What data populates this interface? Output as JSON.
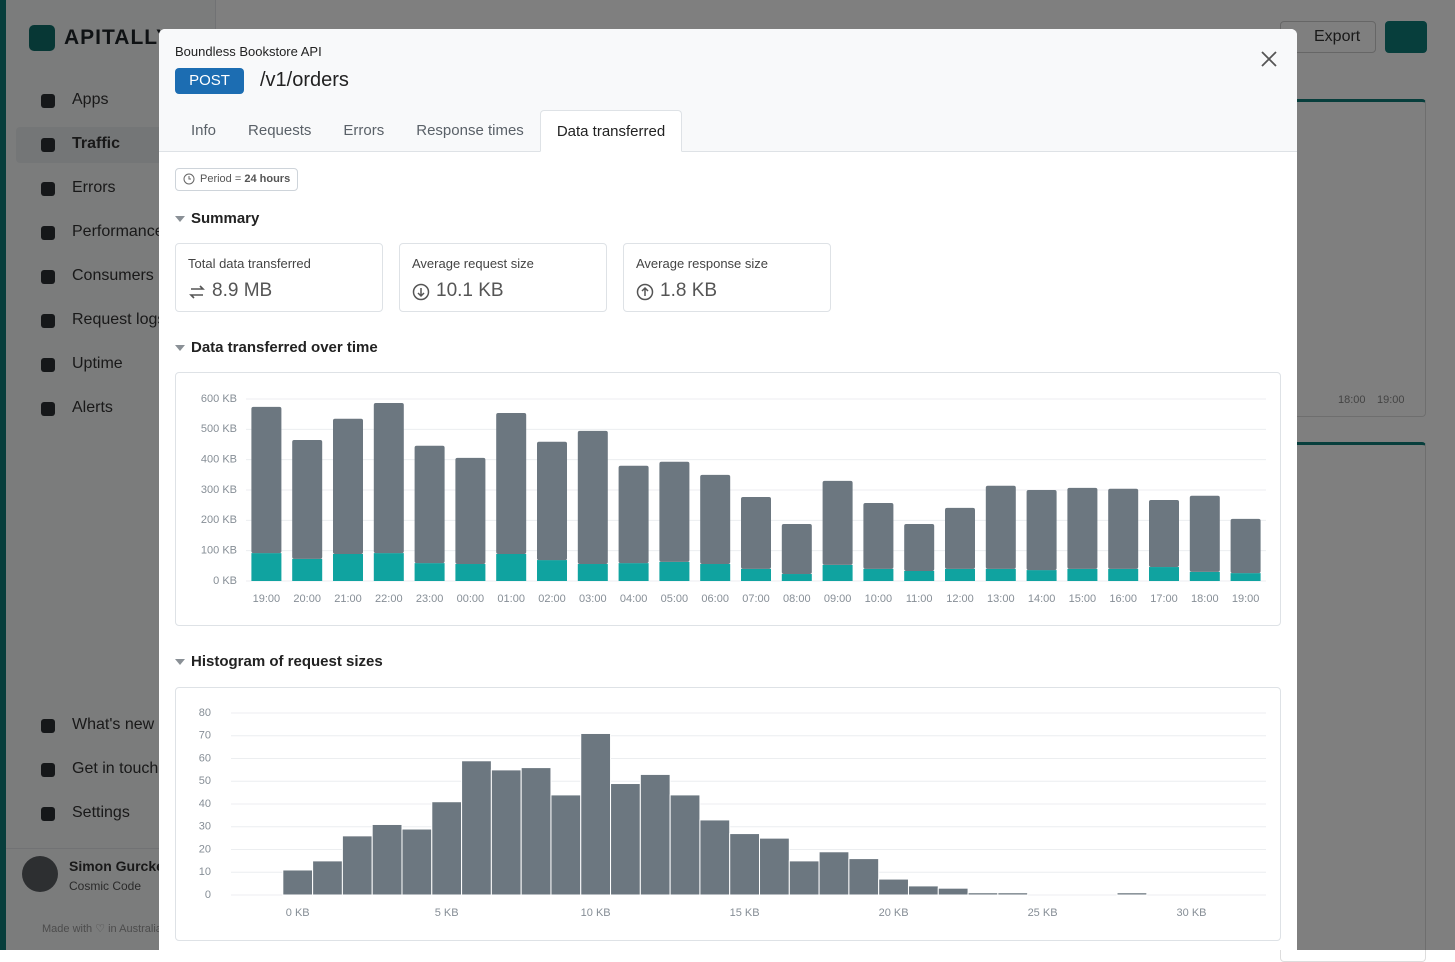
{
  "sidebar": {
    "brand": "APITALLY",
    "nav": [
      "Apps",
      "Traffic",
      "Errors",
      "Performance",
      "Consumers",
      "Request logs",
      "Uptime",
      "Alerts"
    ],
    "active_nav": 1,
    "bottom_nav": [
      "What's new",
      "Get in touch",
      "Settings"
    ],
    "user_name": "Simon Gurcke",
    "user_org": "Cosmic Code",
    "footer": "Made with ♡ in Australia"
  },
  "background": {
    "export": "Export",
    "x_labels": [
      "18:00",
      "19:00"
    ]
  },
  "modal": {
    "app": "Boundless Bookstore API",
    "method": "POST",
    "path": "/v1/orders",
    "tabs": [
      "Info",
      "Requests",
      "Errors",
      "Response times",
      "Data transferred"
    ],
    "active_tab": 4,
    "period_label": "Period =",
    "period_value": "24 hours",
    "summary_title": "Summary",
    "cards": [
      {
        "label": "Total data transferred",
        "value": "8.9 MB"
      },
      {
        "label": "Average request size",
        "value": "10.1 KB"
      },
      {
        "label": "Average response size",
        "value": "1.8 KB"
      }
    ]
  },
  "chart_data": [
    {
      "type": "bar",
      "stacked": true,
      "title": "Data transferred over time",
      "categories": [
        "19:00",
        "20:00",
        "21:00",
        "22:00",
        "23:00",
        "00:00",
        "01:00",
        "02:00",
        "03:00",
        "04:00",
        "05:00",
        "06:00",
        "07:00",
        "08:00",
        "09:00",
        "10:00",
        "11:00",
        "12:00",
        "13:00",
        "14:00",
        "15:00",
        "16:00",
        "17:00",
        "18:00",
        "19:00"
      ],
      "series": [
        {
          "color": "#10a3a0",
          "values": [
            92,
            73,
            89,
            92,
            59,
            56,
            89,
            69,
            56,
            59,
            63,
            56,
            40,
            23,
            53,
            40,
            33,
            40,
            40,
            36,
            40,
            40,
            46,
            30,
            26
          ]
        },
        {
          "color": "#6c7780",
          "values": [
            482,
            392,
            446,
            495,
            387,
            350,
            465,
            390,
            439,
            321,
            330,
            294,
            237,
            165,
            277,
            217,
            155,
            201,
            274,
            264,
            267,
            264,
            221,
            251,
            179
          ]
        }
      ],
      "ylim": [
        0,
        600
      ],
      "yticks": [
        {
          "value": 0,
          "label": "0 KB"
        },
        {
          "value": 100,
          "label": "100 KB"
        },
        {
          "value": 200,
          "label": "200 KB"
        },
        {
          "value": 300,
          "label": "300 KB"
        },
        {
          "value": 400,
          "label": "400 KB"
        },
        {
          "value": 500,
          "label": "500 KB"
        },
        {
          "value": 600,
          "label": "600 KB"
        }
      ],
      "grid": true
    },
    {
      "type": "histogram",
      "title": "Histogram of request sizes",
      "color": "#6c7780",
      "bins": [
        -0.5,
        0.5,
        1.5,
        2.5,
        3.5,
        4.5,
        5.5,
        6.5,
        7.5,
        8.5,
        9.5,
        10.5,
        11.5,
        12.5,
        13.5,
        14.5,
        15.5,
        16.5,
        17.5,
        18.5,
        19.5,
        20.5,
        21.5,
        22.5,
        23.5,
        24.5,
        25.5,
        26.5,
        27.5,
        28.5
      ],
      "values": [
        11,
        15,
        26,
        31,
        29,
        41,
        59,
        55,
        56,
        44,
        71,
        49,
        53,
        44,
        33,
        27,
        25,
        15,
        19,
        16,
        7,
        4,
        3,
        1,
        1,
        0,
        0,
        0,
        1
      ],
      "xlim": [
        -1.4,
        32.5
      ],
      "xticks": [
        {
          "value": 0,
          "label": "0 KB"
        },
        {
          "value": 5,
          "label": "5 KB"
        },
        {
          "value": 10,
          "label": "10 KB"
        },
        {
          "value": 15,
          "label": "15 KB"
        },
        {
          "value": 20,
          "label": "20 KB"
        },
        {
          "value": 25,
          "label": "25 KB"
        },
        {
          "value": 30,
          "label": "30 KB"
        }
      ],
      "ylim": [
        0,
        80
      ],
      "yticks": [
        0,
        10,
        20,
        30,
        40,
        50,
        60,
        70,
        80
      ],
      "grid": true
    }
  ]
}
